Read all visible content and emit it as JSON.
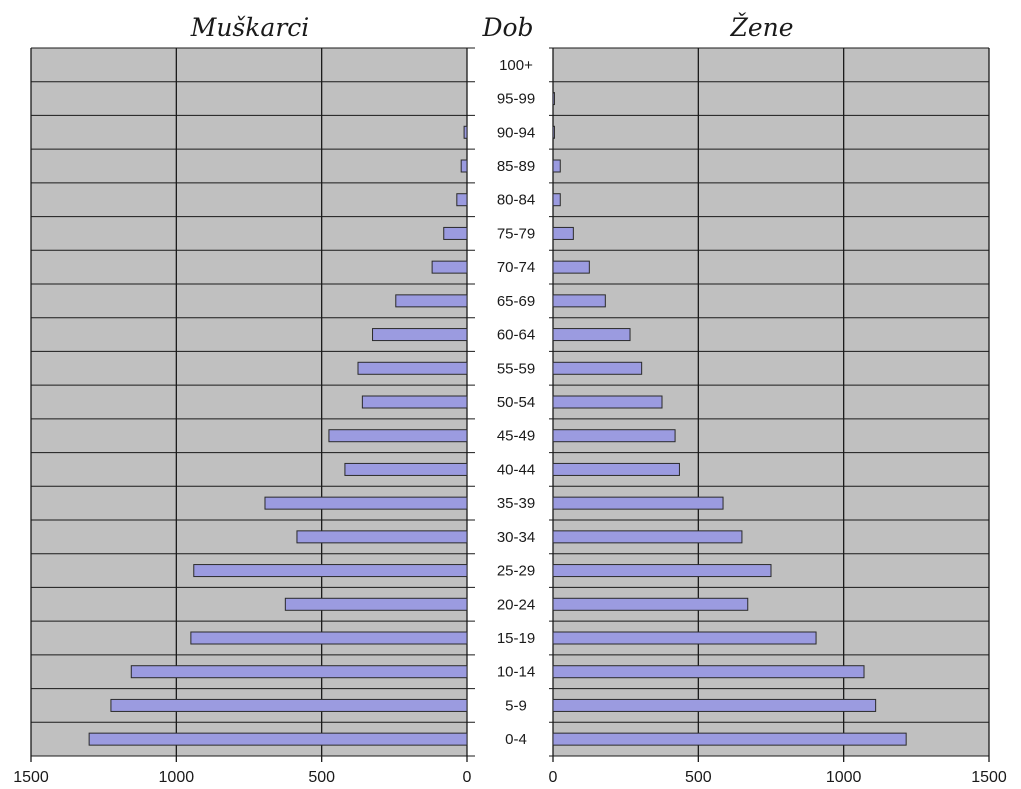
{
  "chart_data": {
    "type": "bar",
    "orientation": "horizontal",
    "headers": {
      "left": "Muškarci",
      "center": "Dob",
      "right": "Žene"
    },
    "categories": [
      "0-4",
      "5-9",
      "10-14",
      "15-19",
      "20-24",
      "25-29",
      "30-34",
      "35-39",
      "40-44",
      "45-49",
      "50-54",
      "55-59",
      "60-64",
      "65-69",
      "70-74",
      "75-79",
      "80-84",
      "85-89",
      "90-94",
      "95-99",
      "100+"
    ],
    "series": [
      {
        "name": "Muškarci",
        "values": [
          1300,
          1225,
          1155,
          950,
          625,
          940,
          585,
          695,
          420,
          475,
          360,
          375,
          325,
          245,
          120,
          80,
          35,
          20,
          10,
          0,
          0
        ]
      },
      {
        "name": "Žene",
        "values": [
          1215,
          1110,
          1070,
          905,
          670,
          750,
          650,
          585,
          435,
          420,
          375,
          305,
          265,
          180,
          125,
          70,
          25,
          25,
          5,
          5,
          0
        ]
      }
    ],
    "xlim": [
      0,
      1500
    ],
    "left_ticks": [
      "1500",
      "1000",
      "500",
      "0"
    ],
    "right_ticks": [
      "0",
      "500",
      "1000",
      "1500"
    ],
    "grid": true,
    "colors": {
      "bar": "#9b9be0",
      "background": "#c0c0c0",
      "grid": "#1a1a1a"
    }
  }
}
